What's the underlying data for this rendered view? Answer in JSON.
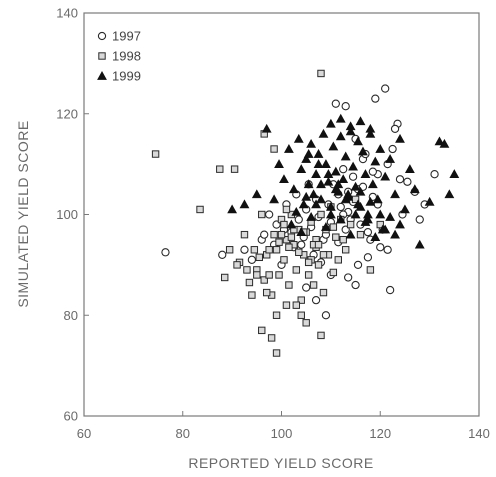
{
  "chart_data": {
    "type": "scatter",
    "title": "",
    "xlabel": "REPORTED YIELD SCORE",
    "ylabel": "SIMULATED YIELD SCORE",
    "xlim": [
      60,
      140
    ],
    "ylim": [
      60,
      140
    ],
    "xticks": [
      "60",
      "80",
      "100",
      "120",
      "140"
    ],
    "yticks": [
      "60",
      "80",
      "100",
      "120",
      "140"
    ],
    "grid": false,
    "legend_position": "top-left",
    "colors": {
      "axis": "#7a7a7a",
      "marker": "#2a2a2a"
    },
    "series": [
      {
        "name": "1997",
        "marker": "open-circle",
        "x": [
          76.5,
          88.0,
          92.5,
          94.0,
          96.0,
          97.5,
          99.0,
          100.5,
          102.0,
          103.5,
          105.0,
          106.0,
          107.0,
          108.5,
          109.5,
          110.5,
          111.5,
          112.5,
          113.5,
          114.5,
          115.5,
          116.5,
          117.5,
          118.5,
          119.5,
          120.5,
          121.5,
          122.5,
          123.5,
          124.5,
          125.5,
          127.0,
          128.0,
          129.0,
          131.0,
          111.0,
          113.0,
          115.0,
          117.0,
          119.0,
          121.0,
          123.0,
          113.5,
          116.0,
          118.0,
          120.0,
          122.0,
          124.0,
          112.0,
          114.0,
          104.0,
          106.5,
          108.0,
          110.0,
          115.5,
          117.5,
          101.0,
          103.0,
          105.5,
          107.5,
          109.0,
          111.5,
          113.0,
          119.5,
          121.5,
          96.5,
          98.5,
          100.0,
          102.5,
          104.5,
          110.0,
          112.5,
          114.5,
          116.5,
          118.5,
          109.0,
          107.0,
          105.0,
          113.5,
          115.0
        ],
        "y": [
          92.5,
          92.0,
          93.0,
          91.0,
          95.0,
          100.0,
          98.0,
          97.0,
          96.5,
          99.0,
          101.0,
          97.5,
          103.0,
          95.0,
          102.0,
          106.0,
          104.0,
          109.0,
          100.5,
          107.5,
          105.0,
          111.0,
          96.5,
          103.5,
          108.0,
          97.0,
          110.0,
          113.0,
          118.0,
          100.0,
          106.5,
          104.5,
          99.0,
          102.0,
          108.0,
          122.0,
          121.5,
          115.0,
          112.0,
          123.0,
          125.0,
          117.0,
          104.5,
          98.0,
          95.0,
          93.5,
          85.0,
          107.0,
          101.5,
          99.0,
          94.0,
          92.0,
          90.5,
          88.0,
          90.0,
          91.5,
          102.0,
          104.0,
          106.0,
          99.5,
          96.0,
          94.5,
          97.0,
          102.0,
          93.0,
          96.0,
          94.0,
          90.0,
          93.5,
          95.5,
          98.5,
          100.0,
          102.5,
          105.5,
          108.5,
          80.0,
          83.0,
          85.5,
          87.5,
          86.0
        ]
      },
      {
        "name": "1998",
        "marker": "open-square",
        "x": [
          74.5,
          83.5,
          87.5,
          88.5,
          89.5,
          90.5,
          91.5,
          92.5,
          93.0,
          94.0,
          94.5,
          95.0,
          96.0,
          96.5,
          97.0,
          97.5,
          98.0,
          98.5,
          99.0,
          99.5,
          100.0,
          100.5,
          101.0,
          101.5,
          102.0,
          102.5,
          103.0,
          103.5,
          104.0,
          104.5,
          105.0,
          105.5,
          106.0,
          106.5,
          107.0,
          107.5,
          108.0,
          108.5,
          109.0,
          109.5,
          110.0,
          110.5,
          111.0,
          111.5,
          112.0,
          113.0,
          114.0,
          115.0,
          116.0,
          118.0,
          120.0,
          96.0,
          98.0,
          99.0,
          100.0,
          101.0,
          102.0,
          103.0,
          104.0,
          105.0,
          106.0,
          107.0,
          108.0,
          100.5,
          102.5,
          104.5,
          106.5,
          108.5,
          110.5,
          112.5,
          95.5,
          97.5,
          99.5,
          101.5,
          103.5,
          105.5,
          107.5,
          108.0,
          96.5,
          98.5,
          91.0,
          93.5,
          95.0,
          97.0,
          99.0,
          101.0
        ],
        "y": [
          112.0,
          101.0,
          109.0,
          87.5,
          93.0,
          109.0,
          90.5,
          96.0,
          89.0,
          84.0,
          93.0,
          89.0,
          100.0,
          87.0,
          92.0,
          88.0,
          84.0,
          96.0,
          93.0,
          88.0,
          99.0,
          91.0,
          95.0,
          86.0,
          100.0,
          94.0,
          89.0,
          97.0,
          83.0,
          92.0,
          96.5,
          88.0,
          98.5,
          86.0,
          95.0,
          90.0,
          100.0,
          84.5,
          97.0,
          92.0,
          101.5,
          88.5,
          95.5,
          91.0,
          99.0,
          93.0,
          98.0,
          103.0,
          96.0,
          89.0,
          98.0,
          77.0,
          75.5,
          72.5,
          96.0,
          101.0,
          95.5,
          82.0,
          80.0,
          78.5,
          91.0,
          93.5,
          128.0,
          98.0,
          97.0,
          96.5,
          94.0,
          92.0,
          97.5,
          95.0,
          91.5,
          93.0,
          94.5,
          93.5,
          92.5,
          90.5,
          94.0,
          76.0,
          116.0,
          113.0,
          90.0,
          86.5,
          88.0,
          84.5,
          80.0,
          82.0
        ]
      },
      {
        "name": "1999",
        "marker": "filled-triangle",
        "x": [
          90.0,
          92.5,
          95.0,
          97.0,
          98.5,
          99.5,
          100.5,
          101.5,
          102.5,
          103.5,
          104.0,
          104.5,
          105.0,
          105.5,
          106.0,
          106.5,
          107.0,
          107.5,
          108.0,
          108.5,
          109.0,
          109.5,
          110.0,
          110.5,
          111.0,
          111.5,
          112.0,
          112.5,
          113.0,
          113.5,
          114.0,
          114.5,
          115.0,
          115.5,
          116.0,
          116.5,
          117.0,
          117.5,
          118.0,
          118.5,
          119.0,
          119.5,
          120.0,
          120.5,
          121.0,
          122.0,
          123.0,
          124.0,
          125.0,
          126.0,
          127.0,
          128.0,
          130.0,
          132.0,
          133.0,
          134.0,
          135.0,
          102.0,
          103.0,
          104.0,
          105.0,
          106.0,
          107.0,
          108.0,
          109.0,
          110.0,
          111.0,
          112.0,
          113.0,
          114.0,
          115.0,
          116.0,
          117.0,
          118.0,
          119.0,
          120.0,
          121.0,
          122.0,
          123.0,
          124.0,
          105.5,
          107.5,
          109.5,
          111.5,
          113.5,
          115.5,
          117.5,
          110.0,
          112.0,
          114.0,
          116.0,
          118.0
        ],
        "y": [
          101.0,
          102.0,
          104.0,
          117.0,
          103.0,
          110.0,
          107.0,
          113.0,
          105.0,
          115.0,
          109.0,
          102.0,
          111.0,
          106.0,
          114.0,
          104.0,
          108.0,
          112.0,
          103.0,
          116.0,
          110.0,
          106.5,
          100.0,
          113.5,
          108.5,
          104.5,
          115.5,
          107.0,
          111.5,
          103.5,
          117.5,
          109.5,
          105.5,
          114.5,
          101.5,
          112.5,
          108.0,
          99.0,
          116.0,
          106.0,
          110.5,
          103.0,
          113.0,
          97.0,
          107.5,
          111.0,
          104.0,
          115.0,
          101.0,
          109.0,
          105.0,
          94.0,
          102.5,
          114.5,
          114.0,
          104.0,
          108.0,
          98.0,
          100.5,
          96.5,
          103.5,
          99.5,
          102.0,
          106.0,
          97.5,
          101.5,
          105.0,
          99.0,
          103.0,
          96.0,
          100.0,
          104.5,
          98.5,
          102.5,
          95.5,
          100.0,
          97.0,
          99.5,
          96.0,
          98.0,
          112.0,
          110.0,
          108.0,
          106.0,
          104.0,
          102.0,
          100.0,
          118.0,
          119.0,
          116.5,
          118.5,
          117.0
        ]
      }
    ]
  }
}
